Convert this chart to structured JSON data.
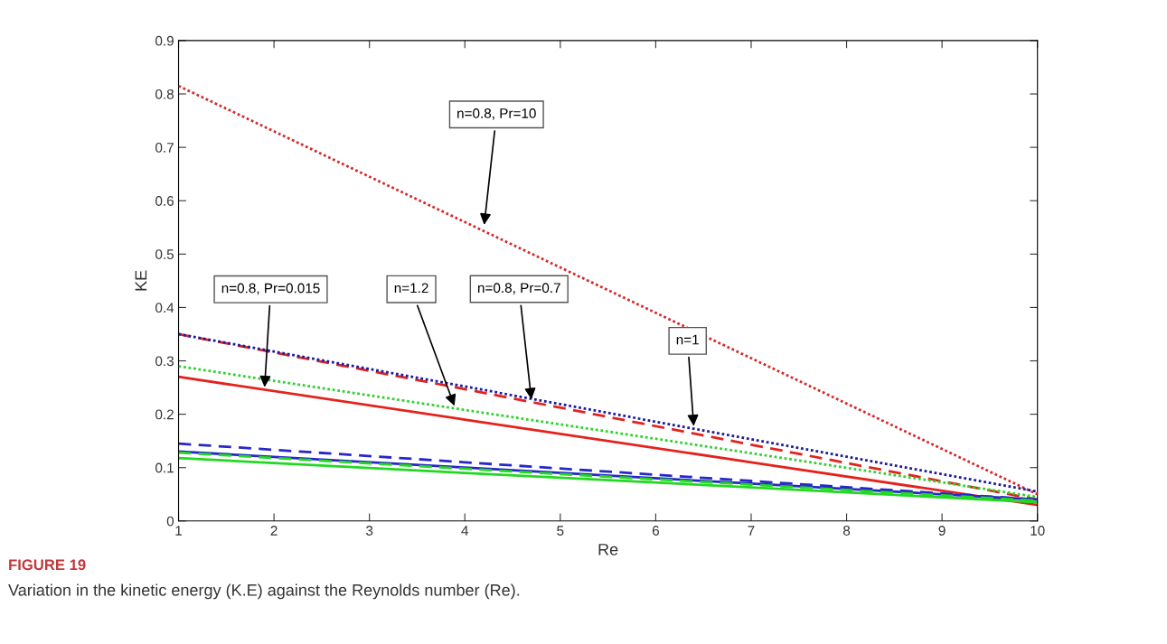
{
  "chart_data": {
    "type": "line",
    "xlabel": "Re",
    "ylabel": "KE",
    "x": [
      1,
      4,
      7,
      10
    ],
    "series": [
      {
        "color": "#d42a2a",
        "line_style": "dotted",
        "values": [
          0.815,
          0.56,
          0.305,
          0.05
        ]
      },
      {
        "color": "#1c1c9c",
        "line_style": "dotted",
        "values": [
          0.35,
          0.252,
          0.153,
          0.055
        ]
      },
      {
        "color": "#e4221c",
        "line_style": "dashed",
        "values": [
          0.35,
          0.247,
          0.143,
          0.04
        ]
      },
      {
        "color": "#2ed22e",
        "line_style": "dotted",
        "values": [
          0.29,
          0.208,
          0.127,
          0.045
        ]
      },
      {
        "color": "#e4221c",
        "line_style": "solid",
        "values": [
          0.27,
          0.19,
          0.11,
          0.03
        ]
      },
      {
        "color": "#2727c8",
        "line_style": "dashed",
        "values": [
          0.145,
          0.11,
          0.075,
          0.04
        ]
      },
      {
        "color": "#2727c8",
        "line_style": "solid",
        "values": [
          0.13,
          0.1,
          0.07,
          0.04
        ]
      },
      {
        "color": "#22d822",
        "line_style": "dashed",
        "values": [
          0.128,
          0.098,
          0.068,
          0.038
        ]
      },
      {
        "color": "#22d822",
        "line_style": "solid",
        "values": [
          0.118,
          0.09,
          0.063,
          0.035
        ]
      }
    ],
    "xlim": [
      1,
      10
    ],
    "xticks": [
      1,
      2,
      3,
      4,
      5,
      6,
      7,
      8,
      9,
      10
    ],
    "ylim": [
      0,
      0.9
    ],
    "yticks": [
      0,
      0.1,
      0.2,
      0.3,
      0.4,
      0.5,
      0.6,
      0.7,
      0.8,
      0.9
    ],
    "grid": false,
    "marker": "none",
    "annotations": [
      {
        "text": "n=0.8, Pr=10",
        "x": 4.2,
        "y": 0.55
      },
      {
        "text": "n=0.8, Pr=0.015",
        "x": 1.9,
        "y": 0.246
      },
      {
        "text": "n=1.2",
        "x": 3.9,
        "y": 0.211
      },
      {
        "text": "n=0.8, Pr=0.7",
        "x": 4.7,
        "y": 0.223
      },
      {
        "text": "n=1",
        "x": 6.4,
        "y": 0.173
      },
      "FIGURE 19",
      "Variation in the kinetic energy (K.E) against the Reynolds number (Re)."
    ]
  }
}
